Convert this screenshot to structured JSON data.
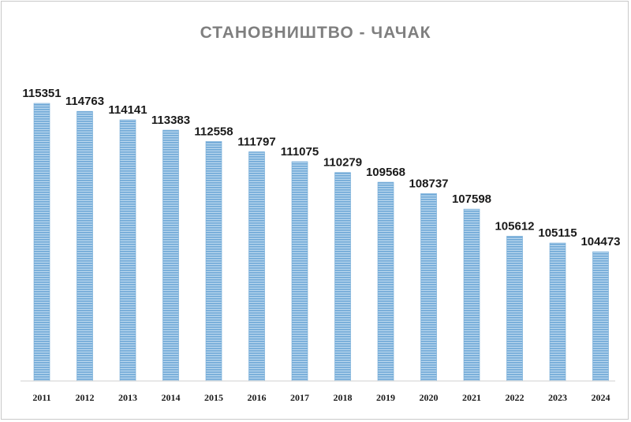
{
  "chart_data": {
    "type": "bar",
    "title": "СТАНОВНИШТВО - ЧАЧАК",
    "categories": [
      "2011",
      "2012",
      "2013",
      "2014",
      "2015",
      "2016",
      "2017",
      "2018",
      "2019",
      "2020",
      "2021",
      "2022",
      "2023",
      "2024"
    ],
    "values": [
      115351,
      114763,
      114141,
      113383,
      112558,
      111797,
      111075,
      110279,
      109568,
      108737,
      107598,
      105612,
      105115,
      104473
    ],
    "xlabel": "",
    "ylabel": "",
    "ylim": [
      95000,
      116500
    ],
    "grid": false,
    "legend": "none",
    "bar_color": "#6fa8d6",
    "bar_stripe_color": "#b9d7ee"
  }
}
